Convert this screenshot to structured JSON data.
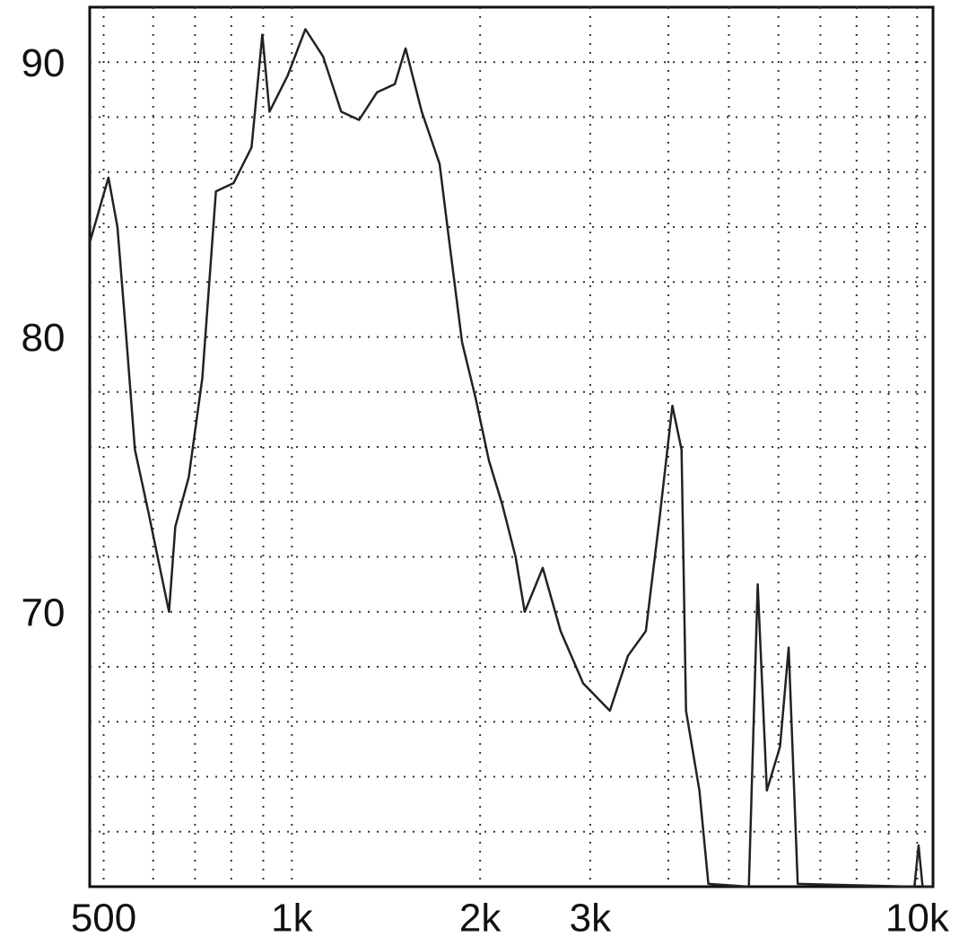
{
  "chart_data": {
    "type": "line",
    "x": [
      476,
      509,
      526,
      543,
      561,
      590,
      610,
      636,
      651,
      684,
      719,
      756,
      807,
      862,
      897,
      921,
      984,
      1051,
      1122,
      1199,
      1281,
      1368,
      1461,
      1520,
      1613,
      1723,
      1780,
      1872,
      1966,
      2066,
      2170,
      2279,
      2357,
      2519,
      2690,
      2923,
      3225,
      3447,
      3682,
      3867,
      4060,
      4199,
      4269,
      4485,
      4635,
      5380,
      5558,
      5750,
      6036,
      6230,
      6440,
      9900,
      10050,
      10200,
      10550
    ],
    "series": [
      {
        "color": "#222222",
        "values": [
          83.5,
          85.8,
          84.0,
          80.1,
          75.9,
          73.6,
          72.0,
          70.0,
          73.1,
          74.9,
          78.5,
          85.3,
          85.6,
          86.9,
          91.0,
          88.2,
          89.5,
          91.2,
          90.2,
          88.2,
          87.9,
          88.9,
          89.2,
          90.5,
          88.2,
          86.3,
          83.7,
          79.8,
          77.8,
          75.5,
          73.9,
          72.0,
          70.0,
          71.6,
          69.3,
          67.4,
          66.4,
          68.4,
          69.3,
          73.3,
          77.5,
          75.9,
          66.4,
          63.5,
          60.1,
          60.0,
          71.0,
          63.5,
          65.1,
          68.7,
          60.1,
          60.0,
          61.5,
          60.0,
          60.0
        ]
      }
    ],
    "xscale": "log",
    "xlim": [
      475,
      10600
    ],
    "ylim": [
      60,
      92
    ],
    "xticks": [
      {
        "value": 500,
        "label": "500"
      },
      {
        "value": 1000,
        "label": "1k"
      },
      {
        "value": 2000,
        "label": "2k"
      },
      {
        "value": 3000,
        "label": "3k"
      },
      {
        "value": 10000,
        "label": "10k"
      }
    ],
    "yticks": [
      70,
      80,
      90
    ],
    "xgrid": [
      500,
      600,
      700,
      800,
      900,
      1000,
      2000,
      3000,
      4000,
      5000,
      6000,
      7000,
      8000,
      9000,
      10000
    ],
    "ygrid": [
      62,
      64,
      66,
      68,
      70,
      72,
      74,
      76,
      78,
      80,
      82,
      84,
      86,
      88,
      90
    ],
    "grid": true
  }
}
